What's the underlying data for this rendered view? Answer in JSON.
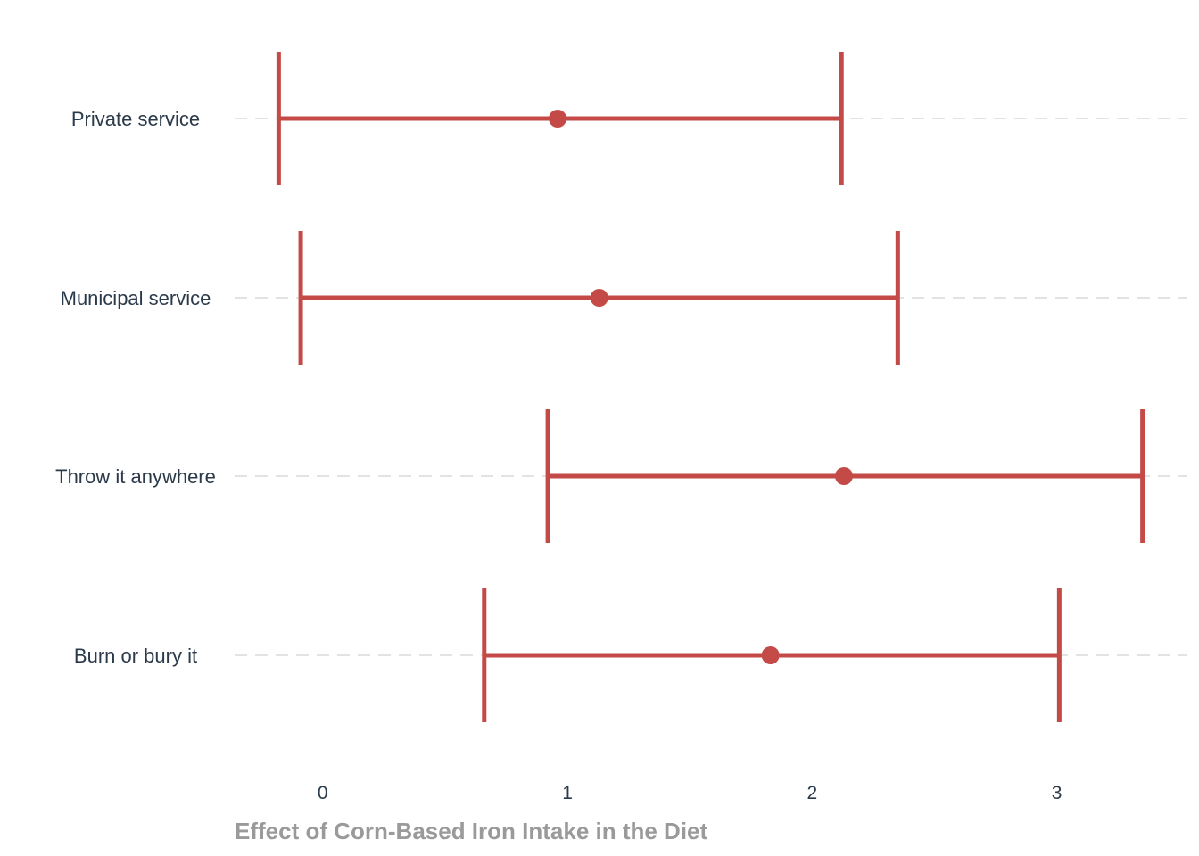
{
  "chart_data": {
    "type": "errorbar",
    "title": "",
    "xlabel": "Effect of Corn-Based Iron Intake in the Diet",
    "ylabel": "",
    "xlim": [
      -0.36,
      3.53
    ],
    "xticks": [
      0,
      1,
      2,
      3
    ],
    "xtick_labels": [
      "0",
      "1",
      "2",
      "3"
    ],
    "grid": "horizontal dashed",
    "color": "#c44a47",
    "categories": [
      "Private service",
      "Municipal service",
      "Throw it anywhere",
      "Burn or bury it"
    ],
    "estimates": [
      0.96,
      1.13,
      2.13,
      1.83
    ],
    "lower": [
      -0.18,
      -0.09,
      0.92,
      0.66
    ],
    "upper": [
      2.12,
      2.35,
      3.35,
      3.01
    ]
  }
}
